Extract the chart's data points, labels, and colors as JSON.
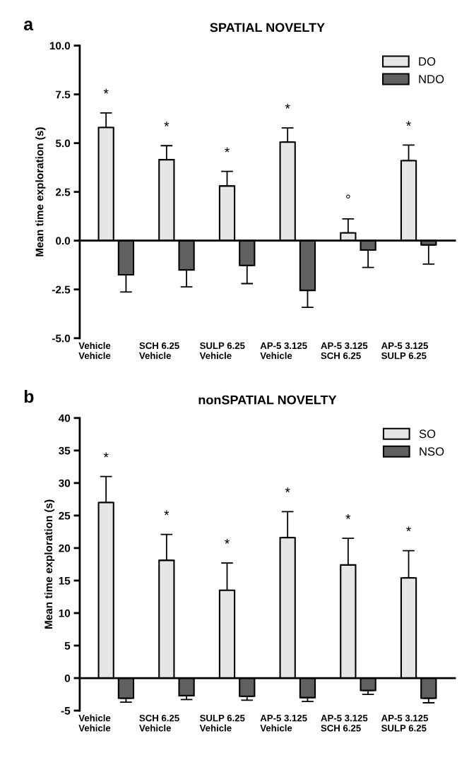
{
  "chart_data": [
    {
      "type": "bar",
      "title": "SPATIAL NOVELTY",
      "ylabel": "Mean time exploration (s)",
      "categories": [
        "Vehicle\nVehicle",
        "SCH 6.25\nVehicle",
        "SULP 6.25\nVehicle",
        "AP-5 3.125\nVehicle",
        "AP-5 3.125\nSCH 6.25",
        "AP-5 3.125\nSULP 6.25"
      ],
      "series": [
        {
          "name": "DO",
          "color": "#e6e6e6",
          "values": [
            5.8,
            4.15,
            2.8,
            5.05,
            0.4,
            4.1
          ],
          "errors": [
            [
              5.8,
              6.55
            ],
            [
              4.15,
              4.87
            ],
            [
              2.8,
              3.55
            ],
            [
              5.05,
              5.78
            ],
            [
              0.4,
              1.12
            ],
            [
              4.1,
              4.9
            ]
          ]
        },
        {
          "name": "NDO",
          "color": "#606060",
          "values": [
            -1.75,
            -1.5,
            -1.27,
            -2.55,
            -0.48,
            -0.22
          ],
          "errors": [
            [
              -2.63,
              -1.75
            ],
            [
              -2.37,
              -1.5
            ],
            [
              -2.2,
              -1.27
            ],
            [
              -3.42,
              -2.55
            ],
            [
              -1.37,
              -0.48
            ],
            [
              -1.2,
              -0.22
            ]
          ]
        }
      ],
      "ylim": [
        -5.0,
        10.0
      ],
      "yticks": [
        {
          "value": -5,
          "label": "-5.0"
        },
        {
          "value": -2.5,
          "label": "-2.5"
        },
        {
          "value": 0,
          "label": "0.0"
        },
        {
          "value": 2.5,
          "label": "2.5"
        },
        {
          "value": 5,
          "label": "5.0"
        },
        {
          "value": 7.5,
          "label": "7.5"
        },
        {
          "value": 10,
          "label": "10.0"
        }
      ],
      "legend": "top right",
      "annotations": [
        "a",
        "*",
        "*",
        "*",
        "*",
        "°",
        "*"
      ]
    },
    {
      "type": "bar",
      "title": "nonSPATIAL NOVELTY",
      "ylabel": "Mean time exploration (s)",
      "categories": [
        "Vehicle\nVehicle",
        "SCH 6.25\nVehicle",
        "SULP 6.25\nVehicle",
        "AP-5 3.125\nVehicle",
        "AP-5 3.125\nSCH 6.25",
        "AP-5 3.125\nSULP 6.25"
      ],
      "series": [
        {
          "name": "SO",
          "color": "#e6e6e6",
          "values": [
            27,
            18.1,
            13.5,
            21.6,
            17.4,
            15.4
          ],
          "errors": [
            [
              27,
              31
            ],
            [
              18.1,
              22.1
            ],
            [
              13.5,
              17.7
            ],
            [
              21.6,
              25.6
            ],
            [
              17.4,
              21.5
            ],
            [
              15.4,
              19.6
            ]
          ]
        },
        {
          "name": "NSO",
          "color": "#606060",
          "values": [
            -3.1,
            -2.7,
            -2.8,
            -3.0,
            -1.9,
            -3.1
          ],
          "errors": [
            [
              -3.7,
              -3.1
            ],
            [
              -3.3,
              -2.7
            ],
            [
              -3.4,
              -2.8
            ],
            [
              -3.6,
              -3.0
            ],
            [
              -2.5,
              -1.9
            ],
            [
              -3.8,
              -3.1
            ]
          ]
        }
      ],
      "ylim": [
        -5,
        40
      ],
      "yticks": [
        -5,
        0,
        5,
        10,
        15,
        20,
        25,
        30,
        35,
        40
      ],
      "legend": "top right",
      "annotations": [
        "b",
        "*",
        "*",
        "*",
        "*",
        "*",
        "*"
      ]
    }
  ]
}
